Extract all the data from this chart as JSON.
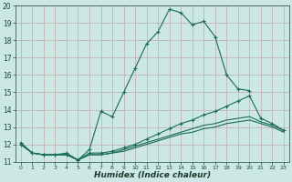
{
  "xlabel": "Humidex (Indice chaleur)",
  "ylabel": "",
  "xlim": [
    -0.5,
    23.5
  ],
  "ylim": [
    11,
    20
  ],
  "yticks": [
    11,
    12,
    13,
    14,
    15,
    16,
    17,
    18,
    19,
    20
  ],
  "xticks": [
    0,
    1,
    2,
    3,
    4,
    5,
    6,
    7,
    8,
    9,
    10,
    11,
    12,
    13,
    14,
    15,
    16,
    17,
    18,
    19,
    20,
    21,
    22,
    23
  ],
  "bg_color": "#cce8e4",
  "grid_color": "#c4a8a8",
  "line_color": "#1a6b5a",
  "lines": [
    {
      "x": [
        0,
        1,
        2,
        3,
        4,
        5,
        6,
        7,
        8,
        9,
        10,
        11,
        12,
        13,
        14,
        15,
        16,
        17,
        18,
        19,
        20
      ],
      "y": [
        12.1,
        11.5,
        11.4,
        11.4,
        11.5,
        11.1,
        11.7,
        13.9,
        13.6,
        15.0,
        16.4,
        17.8,
        18.5,
        19.8,
        19.6,
        18.9,
        19.1,
        18.2,
        16.0,
        15.2,
        15.1
      ],
      "has_markers": true
    },
    {
      "x": [
        0,
        1,
        2,
        3,
        4,
        5,
        6,
        7,
        8,
        9,
        10,
        11,
        12,
        13,
        14,
        15,
        16,
        17,
        18,
        19,
        20,
        21,
        22,
        23
      ],
      "y": [
        12.0,
        11.5,
        11.4,
        11.4,
        11.4,
        11.1,
        11.5,
        11.5,
        11.6,
        11.8,
        12.0,
        12.3,
        12.6,
        12.9,
        13.2,
        13.4,
        13.7,
        13.9,
        14.2,
        14.5,
        14.8,
        13.5,
        13.2,
        12.8
      ],
      "has_markers": true
    },
    {
      "x": [
        0,
        1,
        2,
        3,
        4,
        5,
        6,
        7,
        8,
        9,
        10,
        11,
        12,
        13,
        14,
        15,
        16,
        17,
        18,
        19,
        20,
        21,
        22,
        23
      ],
      "y": [
        12.0,
        11.5,
        11.4,
        11.4,
        11.4,
        11.1,
        11.4,
        11.4,
        11.5,
        11.7,
        11.9,
        12.1,
        12.3,
        12.5,
        12.7,
        12.9,
        13.1,
        13.2,
        13.4,
        13.5,
        13.6,
        13.3,
        13.1,
        12.8
      ],
      "has_markers": false
    },
    {
      "x": [
        0,
        1,
        2,
        3,
        4,
        5,
        6,
        7,
        8,
        9,
        10,
        11,
        12,
        13,
        14,
        15,
        16,
        17,
        18,
        19,
        20,
        21,
        22,
        23
      ],
      "y": [
        12.0,
        11.5,
        11.4,
        11.4,
        11.4,
        11.1,
        11.4,
        11.4,
        11.5,
        11.6,
        11.8,
        12.0,
        12.2,
        12.4,
        12.6,
        12.7,
        12.9,
        13.0,
        13.2,
        13.3,
        13.4,
        13.2,
        13.0,
        12.7
      ],
      "has_markers": false
    }
  ]
}
